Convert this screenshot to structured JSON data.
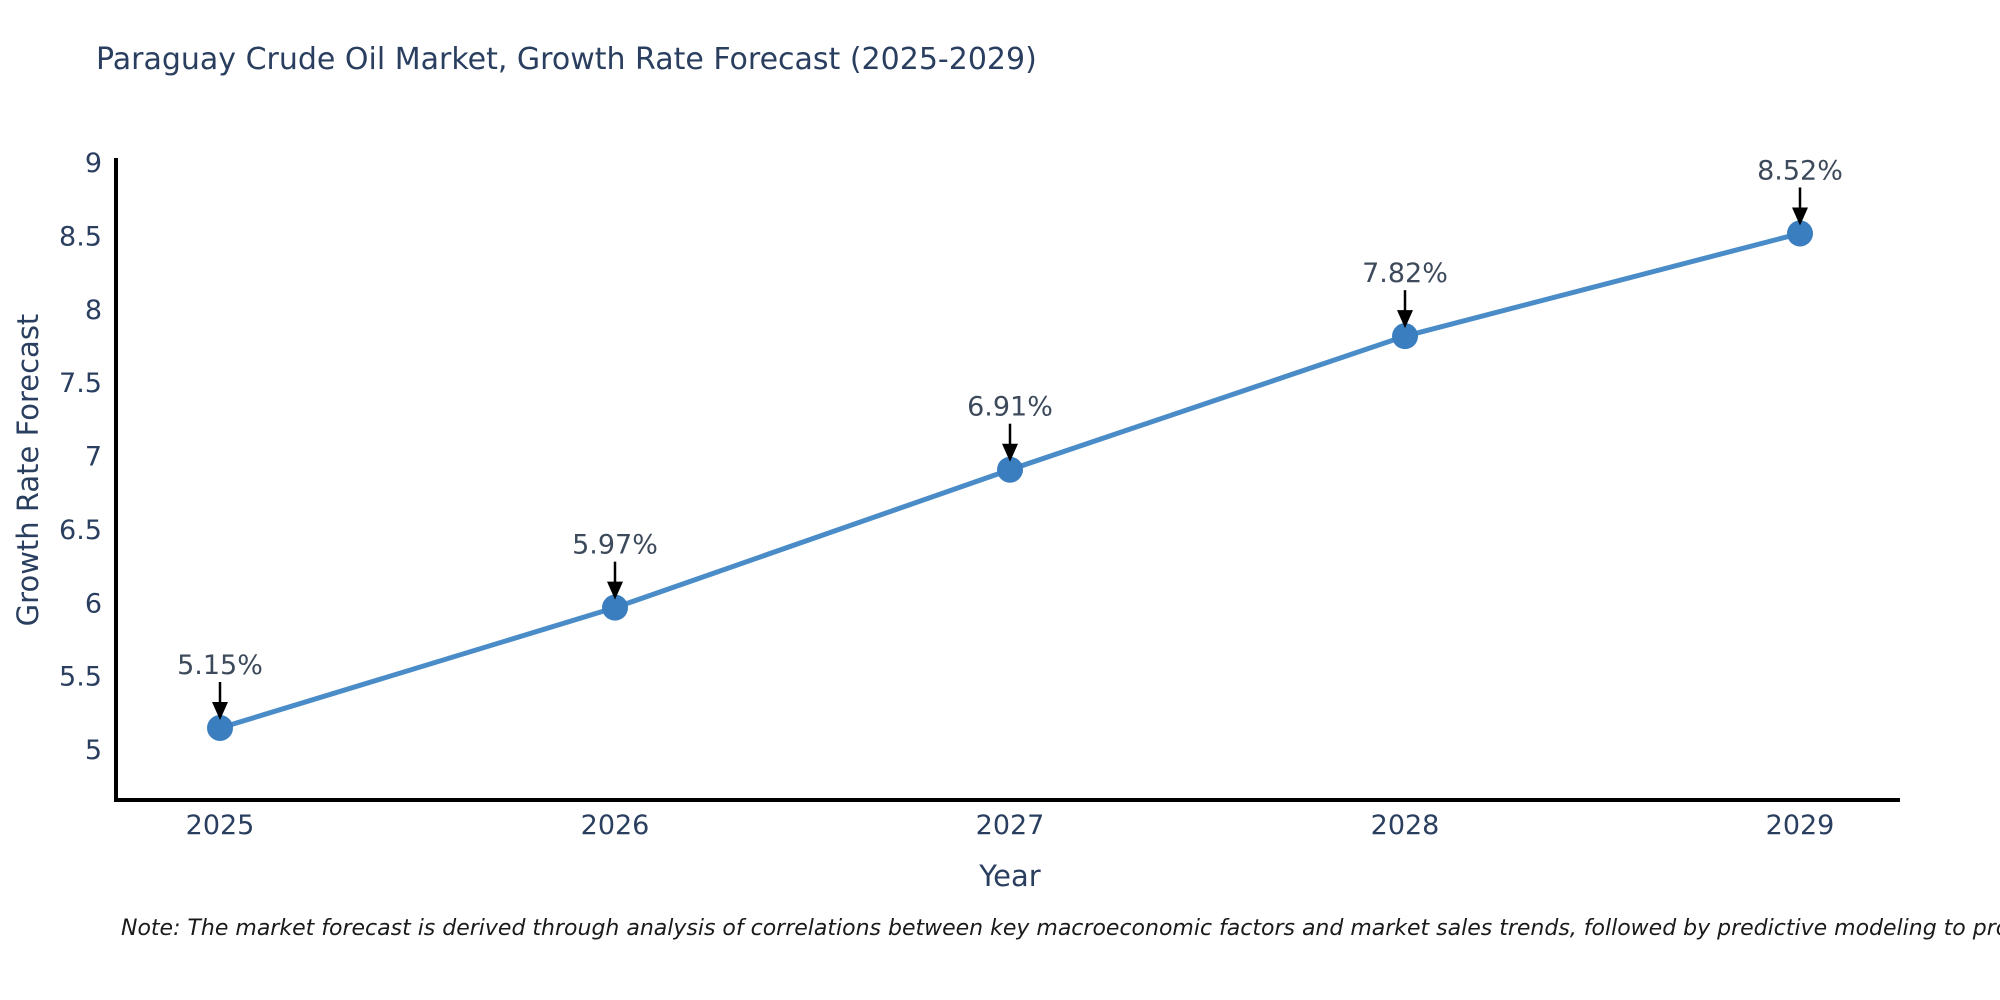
{
  "title": "Paraguay Crude Oil Market, Growth Rate Forecast (2025-2029)",
  "note": "Note: The market forecast is derived through analysis of correlations between key macroeconomic factors and market sales trends, followed by predictive modeling to project future sales",
  "chart_data": {
    "type": "line",
    "title": "Paraguay Crude Oil Market, Growth Rate Forecast (2025-2029)",
    "xlabel": "Year",
    "ylabel": "Growth Rate Forecast",
    "x": [
      "2025",
      "2026",
      "2027",
      "2028",
      "2029"
    ],
    "series": [
      {
        "name": "Growth Rate Forecast",
        "values": [
          5.15,
          5.97,
          6.91,
          7.82,
          8.52
        ]
      }
    ],
    "point_labels": [
      "5.15%",
      "5.97%",
      "6.91%",
      "7.82%",
      "8.52%"
    ],
    "yticks": [
      5,
      5.5,
      6,
      6.5,
      7,
      7.5,
      8,
      8.5,
      9
    ],
    "ytick_labels": [
      "5",
      "5.5",
      "6",
      "6.5",
      "7",
      "7.5",
      "8",
      "8.5",
      "9"
    ],
    "ylim": [
      4.66,
      9.0
    ],
    "grid": false,
    "legend": "none",
    "colors": {
      "line": "#4a8cc7",
      "marker": "#3a7ebf",
      "arrow": "#000000",
      "axis": "#000000",
      "text": "#2a3f5f"
    }
  }
}
